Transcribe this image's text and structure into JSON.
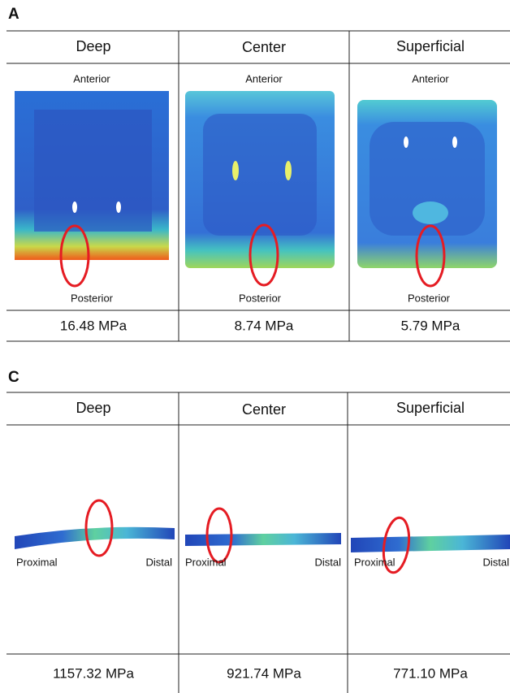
{
  "panels": [
    {
      "label": "A",
      "columns": [
        {
          "header": "Deep",
          "top": "Anterior",
          "bottom": "Posterior",
          "value": "16.48 MPa"
        },
        {
          "header": "Center",
          "top": "Anterior",
          "bottom": "Posterior",
          "value": "8.74 MPa"
        },
        {
          "header": "Superficial",
          "top": "Anterior",
          "bottom": "Posterior",
          "value": "5.79 MPa"
        }
      ]
    },
    {
      "label": "C",
      "columns": [
        {
          "header": "Deep",
          "left": "Proximal",
          "right": "Distal",
          "value": "1157.32 MPa"
        },
        {
          "header": "Center",
          "left": "Proximal",
          "right": "Distal",
          "value": "921.74 MPa"
        },
        {
          "header": "Superficial",
          "left": "Proximal",
          "right": "Distal",
          "value": "771.10 MPa"
        }
      ]
    }
  ]
}
